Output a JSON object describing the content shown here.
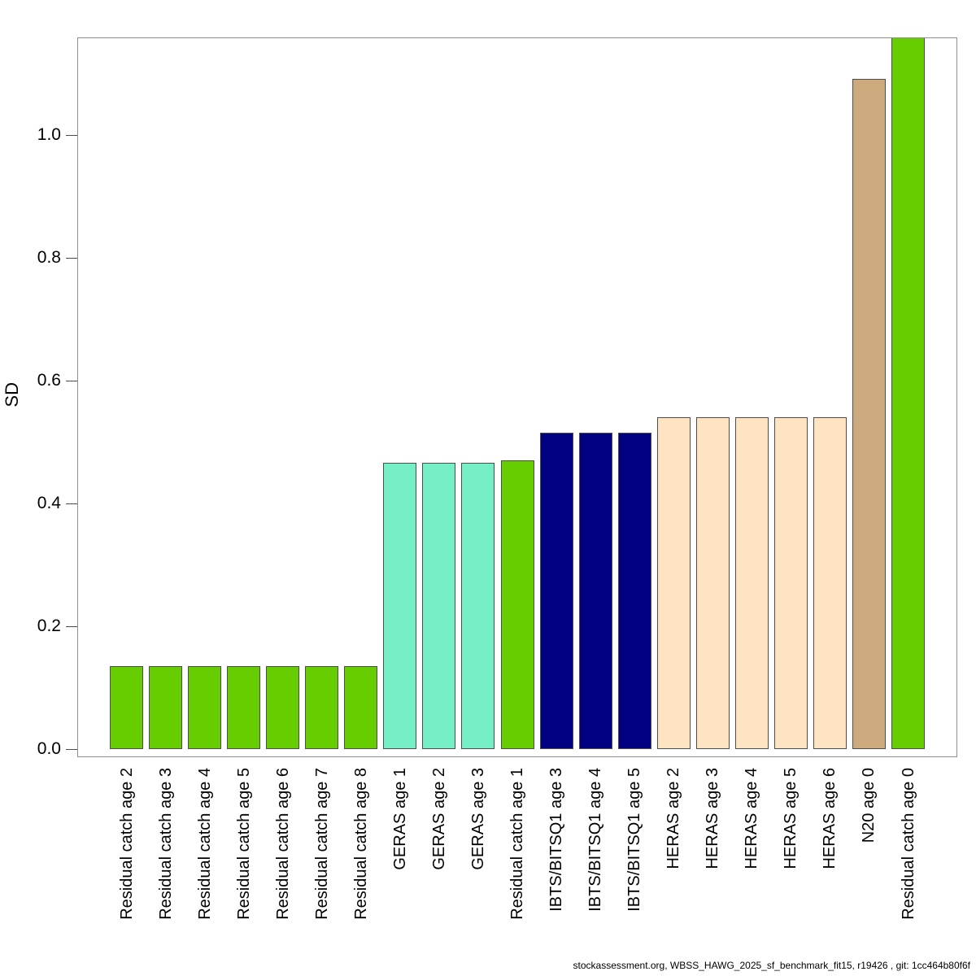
{
  "footer": "stockassessment.org, WBSS_HAWG_2025_sf_benchmark_fit15, r19426 , git: 1cc464b80f6f",
  "chart_data": {
    "type": "bar",
    "title": "",
    "xlabel": "",
    "ylabel": "SD",
    "ylim": [
      0,
      1.16
    ],
    "yticks": [
      0.0,
      0.2,
      0.4,
      0.6,
      0.8,
      1.0
    ],
    "grid": false,
    "legend_position": "none",
    "categories": [
      "Residual catch age 2",
      "Residual catch age 3",
      "Residual catch age 4",
      "Residual catch age 5",
      "Residual catch age 6",
      "Residual catch age 7",
      "Residual catch age 8",
      "GERAS age 1",
      "GERAS age 2",
      "GERAS age 3",
      "Residual catch age 1",
      "IBTS/BITSQ1 age 3",
      "IBTS/BITSQ1 age 4",
      "IBTS/BITSQ1 age 5",
      "HERAS age 2",
      "HERAS age 3",
      "HERAS age 4",
      "HERAS age 5",
      "HERAS age 6",
      "N20 age 0",
      "Residual catch age 0"
    ],
    "values": [
      0.135,
      0.135,
      0.135,
      0.135,
      0.135,
      0.135,
      0.135,
      0.466,
      0.466,
      0.466,
      0.47,
      0.515,
      0.515,
      0.515,
      0.54,
      0.54,
      0.54,
      0.54,
      0.54,
      1.092,
      1.16
    ],
    "bar_colors": [
      "#66CD00",
      "#66CD00",
      "#66CD00",
      "#66CD00",
      "#66CD00",
      "#66CD00",
      "#66CD00",
      "#76EEC6",
      "#76EEC6",
      "#76EEC6",
      "#66CD00",
      "#000080",
      "#000080",
      "#000080",
      "#FFE4C4",
      "#FFE4C4",
      "#FFE4C4",
      "#FFE4C4",
      "#FFE4C4",
      "#CDAA7D",
      "#66CD00"
    ],
    "fleet_colors": {
      "Residual catch": "#66CD00",
      "GERAS": "#76EEC6",
      "IBTS/BITSQ1": "#000080",
      "HERAS": "#FFE4C4",
      "N20": "#CDAA7D"
    },
    "bar_border_color": "#4d4d4d",
    "axis_box_color": "#8e8e8e"
  }
}
